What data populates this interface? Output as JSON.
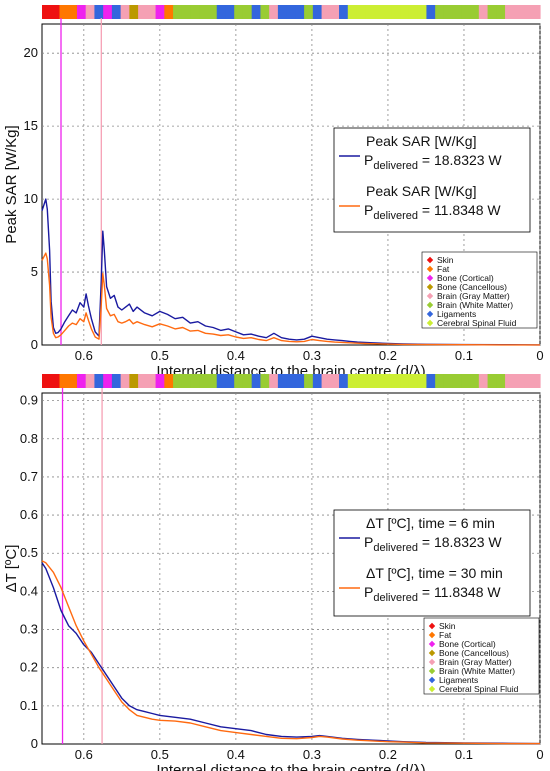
{
  "tissue_colors": {
    "skin": "#ee1111",
    "fat": "#ff7700",
    "bone_cortical": "#ee22ee",
    "bone_cancellous": "#bb9900",
    "brain_gray": "#f5a0b4",
    "brain_white": "#99cc33",
    "ligaments": "#3366dd",
    "csf": "#ccee33"
  },
  "chart_data": [
    {
      "type": "line",
      "xlabel": "Internal distance to the brain centre (d/λ)",
      "ylabel": "Peak SAR [W/Kg]",
      "xlim": [
        0.655,
        0
      ],
      "ylim": [
        0,
        22
      ],
      "x_ticks": [
        "0.6",
        "0.5",
        "0.4",
        "0.3",
        "0.2",
        "0.1",
        "0"
      ],
      "y_ticks": [
        "0",
        "5",
        "10",
        "15",
        "20"
      ],
      "grid": true,
      "legend_position": "right",
      "series_legend": [
        {
          "line1": "Peak SAR [W/Kg]",
          "p_prefix": "P",
          "p_sub": "delivered",
          "p_value": " = 18.8323 W",
          "color": "#1a1aa0"
        },
        {
          "line1": "Peak SAR [W/Kg]",
          "p_prefix": "P",
          "p_sub": "delivered",
          "p_value": " = 11.8348 W",
          "color": "#ff6a10"
        }
      ],
      "tissue_legend": [
        {
          "label": "Skin",
          "key": "skin"
        },
        {
          "label": "Fat",
          "key": "fat"
        },
        {
          "label": "Bone (Cortical)",
          "key": "bone_cortical"
        },
        {
          "label": "Bone (Cancellous)",
          "key": "bone_cancellous"
        },
        {
          "label": "Brain (Gray Matter)",
          "key": "brain_gray"
        },
        {
          "label": "Brain (White Matter)",
          "key": "brain_white"
        },
        {
          "label": "Ligaments",
          "key": "ligaments"
        },
        {
          "label": "Cerebral Spinal Fluid",
          "key": "csf"
        }
      ],
      "vlines": [
        {
          "x": 0.63,
          "color": "#ee22ee"
        },
        {
          "x": 0.577,
          "color": "#f5a0b4"
        }
      ],
      "series": [
        {
          "color": "#1a1aa0",
          "x": [
            0.655,
            0.65,
            0.648,
            0.645,
            0.643,
            0.64,
            0.637,
            0.634,
            0.63,
            0.625,
            0.62,
            0.615,
            0.61,
            0.605,
            0.6,
            0.597,
            0.594,
            0.59,
            0.585,
            0.58,
            0.577,
            0.575,
            0.573,
            0.57,
            0.565,
            0.56,
            0.555,
            0.55,
            0.545,
            0.54,
            0.535,
            0.53,
            0.52,
            0.51,
            0.5,
            0.49,
            0.48,
            0.47,
            0.46,
            0.45,
            0.44,
            0.43,
            0.42,
            0.41,
            0.4,
            0.39,
            0.38,
            0.37,
            0.36,
            0.35,
            0.34,
            0.33,
            0.32,
            0.31,
            0.3,
            0.29,
            0.28,
            0.27,
            0.26,
            0.25,
            0.24,
            0.23,
            0.22,
            0.2,
            0.18,
            0.15,
            0.1,
            0.05,
            0
          ],
          "values": [
            9.2,
            10.0,
            9.3,
            6.5,
            3.0,
            1.2,
            0.8,
            0.85,
            1.1,
            1.6,
            2.0,
            2.4,
            2.2,
            2.9,
            2.6,
            3.5,
            2.7,
            1.8,
            0.9,
            0.6,
            4.5,
            7.8,
            6.5,
            4.0,
            3.2,
            3.4,
            2.6,
            2.4,
            2.6,
            2.8,
            2.3,
            2.6,
            2.2,
            2.0,
            2.3,
            2.1,
            1.8,
            1.9,
            1.5,
            1.6,
            1.3,
            1.2,
            1.0,
            1.1,
            0.9,
            0.7,
            0.75,
            0.6,
            0.5,
            0.8,
            0.5,
            0.4,
            0.35,
            0.4,
            0.6,
            0.5,
            0.4,
            0.35,
            0.3,
            0.25,
            0.2,
            0.18,
            0.15,
            0.1,
            0.07,
            0.05,
            0.03,
            0.02,
            0.01
          ]
        },
        {
          "color": "#ff6a10",
          "x": [
            0.655,
            0.65,
            0.648,
            0.645,
            0.643,
            0.64,
            0.637,
            0.634,
            0.63,
            0.625,
            0.62,
            0.615,
            0.61,
            0.605,
            0.6,
            0.597,
            0.594,
            0.59,
            0.585,
            0.58,
            0.577,
            0.575,
            0.573,
            0.57,
            0.565,
            0.56,
            0.555,
            0.55,
            0.545,
            0.54,
            0.535,
            0.53,
            0.52,
            0.51,
            0.5,
            0.49,
            0.48,
            0.47,
            0.46,
            0.45,
            0.44,
            0.43,
            0.42,
            0.41,
            0.4,
            0.39,
            0.38,
            0.37,
            0.36,
            0.35,
            0.34,
            0.33,
            0.32,
            0.31,
            0.3,
            0.29,
            0.28,
            0.27,
            0.26,
            0.25,
            0.24,
            0.23,
            0.22,
            0.2,
            0.18,
            0.15,
            0.1,
            0.05,
            0
          ],
          "values": [
            5.8,
            6.3,
            5.9,
            4.1,
            1.9,
            0.8,
            0.5,
            0.55,
            0.7,
            1.0,
            1.3,
            1.5,
            1.4,
            1.8,
            1.6,
            2.2,
            1.7,
            1.1,
            0.55,
            0.4,
            2.8,
            4.9,
            4.1,
            2.5,
            2.0,
            2.1,
            1.6,
            1.5,
            1.6,
            1.75,
            1.45,
            1.6,
            1.4,
            1.25,
            1.45,
            1.3,
            1.1,
            1.2,
            0.95,
            1.0,
            0.8,
            0.75,
            0.65,
            0.7,
            0.55,
            0.45,
            0.5,
            0.38,
            0.3,
            0.5,
            0.3,
            0.25,
            0.22,
            0.25,
            0.38,
            0.3,
            0.25,
            0.2,
            0.18,
            0.15,
            0.12,
            0.1,
            0.09,
            0.06,
            0.04,
            0.03,
            0.02,
            0.01,
            0.01
          ]
        }
      ]
    },
    {
      "type": "line",
      "xlabel": "Internal distance to the brain centre (d/λ)",
      "ylabel": "ΔT [ºC]",
      "xlim": [
        0.655,
        0
      ],
      "ylim": [
        0,
        0.92
      ],
      "x_ticks": [
        "0.6",
        "0.5",
        "0.4",
        "0.3",
        "0.2",
        "0.1",
        "0"
      ],
      "y_ticks": [
        "0",
        "0.1",
        "0.2",
        "0.3",
        "0.4",
        "0.5",
        "0.6",
        "0.7",
        "0.8",
        "0.9"
      ],
      "grid": true,
      "legend_position": "right",
      "series_legend": [
        {
          "line1": "ΔT [ºC], time = 6 min",
          "p_prefix": "P",
          "p_sub": "delivered",
          "p_value": " = 18.8323 W",
          "color": "#1a1aa0"
        },
        {
          "line1": "ΔT [ºC], time = 30 min",
          "p_prefix": "P",
          "p_sub": "delivered",
          "p_value": " = 11.8348 W",
          "color": "#ff6a10"
        }
      ],
      "tissue_legend": [
        {
          "label": "Skin",
          "key": "skin"
        },
        {
          "label": "Fat",
          "key": "fat"
        },
        {
          "label": "Bone (Cortical)",
          "key": "bone_cortical"
        },
        {
          "label": "Bone (Cancellous)",
          "key": "bone_cancellous"
        },
        {
          "label": "Brain (Gray Matter)",
          "key": "brain_gray"
        },
        {
          "label": "Brain (White Matter)",
          "key": "brain_white"
        },
        {
          "label": "Ligaments",
          "key": "ligaments"
        },
        {
          "label": "Cerebral Spinal Fluid",
          "key": "csf"
        }
      ],
      "vlines": [
        {
          "x": 0.628,
          "color": "#ee22ee"
        },
        {
          "x": 0.576,
          "color": "#f5a0b4"
        }
      ],
      "series": [
        {
          "color": "#1a1aa0",
          "x": [
            0.655,
            0.65,
            0.64,
            0.63,
            0.62,
            0.61,
            0.6,
            0.59,
            0.58,
            0.57,
            0.56,
            0.55,
            0.54,
            0.53,
            0.52,
            0.51,
            0.5,
            0.48,
            0.46,
            0.44,
            0.42,
            0.4,
            0.38,
            0.36,
            0.34,
            0.32,
            0.3,
            0.29,
            0.28,
            0.26,
            0.24,
            0.22,
            0.2,
            0.18,
            0.15,
            0.1,
            0.05,
            0
          ],
          "values": [
            0.475,
            0.46,
            0.41,
            0.35,
            0.31,
            0.29,
            0.26,
            0.24,
            0.21,
            0.18,
            0.15,
            0.12,
            0.1,
            0.09,
            0.085,
            0.08,
            0.075,
            0.07,
            0.065,
            0.055,
            0.045,
            0.04,
            0.035,
            0.025,
            0.02,
            0.018,
            0.02,
            0.022,
            0.02,
            0.015,
            0.012,
            0.01,
            0.008,
            0.006,
            0.004,
            0.003,
            0.002,
            0.001
          ]
        },
        {
          "color": "#ff6a10",
          "x": [
            0.655,
            0.65,
            0.64,
            0.63,
            0.62,
            0.61,
            0.6,
            0.59,
            0.58,
            0.57,
            0.56,
            0.55,
            0.54,
            0.53,
            0.52,
            0.51,
            0.5,
            0.48,
            0.46,
            0.44,
            0.42,
            0.4,
            0.38,
            0.36,
            0.34,
            0.32,
            0.3,
            0.29,
            0.28,
            0.26,
            0.24,
            0.22,
            0.2,
            0.18,
            0.15,
            0.1,
            0.05,
            0
          ],
          "values": [
            0.48,
            0.475,
            0.45,
            0.41,
            0.36,
            0.31,
            0.27,
            0.235,
            0.2,
            0.17,
            0.14,
            0.11,
            0.09,
            0.075,
            0.07,
            0.065,
            0.062,
            0.06,
            0.055,
            0.045,
            0.035,
            0.03,
            0.025,
            0.02,
            0.015,
            0.014,
            0.017,
            0.02,
            0.018,
            0.013,
            0.01,
            0.008,
            0.006,
            0.005,
            0.003,
            0.002,
            0.001,
            0.001
          ]
        }
      ]
    }
  ],
  "tissue_bars": [
    [
      "skin",
      "skin",
      "fat",
      "fat",
      "bone_cortical",
      "brain_gray",
      "ligaments",
      "bone_cortical",
      "ligaments",
      "brain_gray",
      "bone_cancellous",
      "brain_gray",
      "brain_gray",
      "bone_cortical",
      "fat",
      "brain_white",
      "brain_white",
      "brain_white",
      "brain_white",
      "brain_white",
      "ligaments",
      "ligaments",
      "brain_white",
      "brain_white",
      "ligaments",
      "brain_white",
      "brain_gray",
      "ligaments",
      "ligaments",
      "ligaments",
      "brain_white",
      "ligaments",
      "brain_gray",
      "brain_gray",
      "ligaments",
      "csf",
      "csf",
      "csf",
      "csf",
      "csf",
      "csf",
      "csf",
      "csf",
      "csf",
      "ligaments",
      "brain_white",
      "brain_white",
      "brain_white",
      "brain_white",
      "brain_white",
      "brain_gray",
      "brain_white",
      "brain_white",
      "brain_gray",
      "brain_gray",
      "brain_gray",
      "brain_gray"
    ],
    [
      "skin",
      "skin",
      "fat",
      "fat",
      "bone_cortical",
      "brain_gray",
      "ligaments",
      "bone_cortical",
      "ligaments",
      "brain_gray",
      "bone_cancellous",
      "brain_gray",
      "brain_gray",
      "bone_cortical",
      "fat",
      "brain_white",
      "brain_white",
      "brain_white",
      "brain_white",
      "brain_white",
      "ligaments",
      "ligaments",
      "brain_white",
      "brain_white",
      "ligaments",
      "brain_white",
      "brain_gray",
      "ligaments",
      "ligaments",
      "ligaments",
      "brain_white",
      "ligaments",
      "brain_gray",
      "brain_gray",
      "ligaments",
      "csf",
      "csf",
      "csf",
      "csf",
      "csf",
      "csf",
      "csf",
      "csf",
      "csf",
      "ligaments",
      "brain_white",
      "brain_white",
      "brain_white",
      "brain_white",
      "brain_white",
      "brain_gray",
      "brain_white",
      "brain_white",
      "brain_gray",
      "brain_gray",
      "brain_gray",
      "brain_gray"
    ]
  ]
}
